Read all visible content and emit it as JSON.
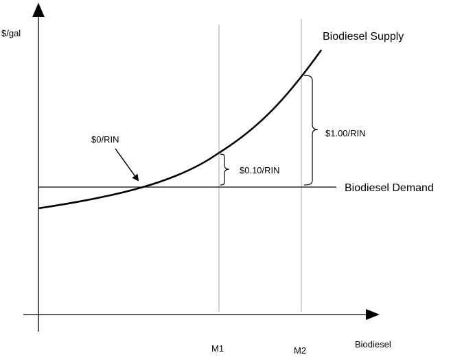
{
  "axes": {
    "y_label": "$/gal",
    "x_label": "Biodiesel"
  },
  "curves": {
    "supply_label": "Biodiesel Supply",
    "demand_label": "Biodiesel Demand"
  },
  "markers": {
    "m1_label": "M1",
    "m2_label": "M2"
  },
  "annotations": {
    "zero_rin": "$0/RIN",
    "rin_at_m1": "$0.10/RIN",
    "rin_at_m2": "$1.00/RIN"
  },
  "colors": {
    "curve": "#000000",
    "guide_line": "#a6a6a6",
    "background": "#ffffff"
  }
}
